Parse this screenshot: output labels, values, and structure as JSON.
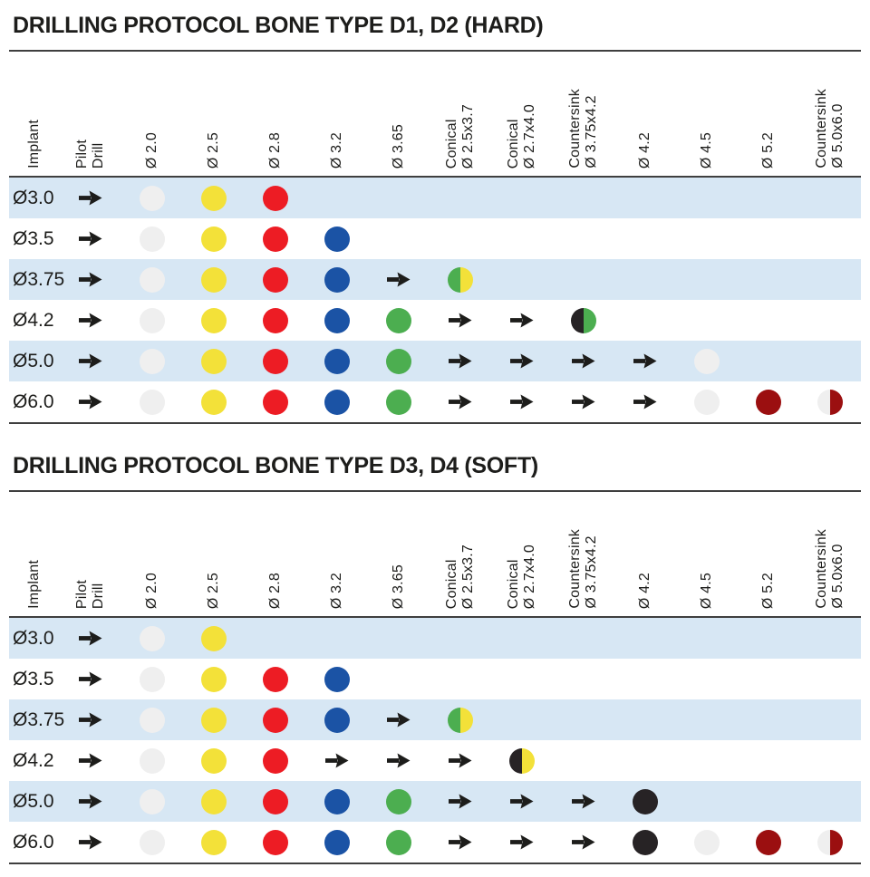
{
  "colors": {
    "white": "#efefef",
    "yellow": "#f3e139",
    "red": "#ed1c24",
    "blue": "#1b53a5",
    "green": "#4cae50",
    "black": "#272325",
    "darkred": "#9b0f10",
    "stripe": "#d7e7f4",
    "rule": "#3f3f3f",
    "arrow": "#1d1d1b",
    "text": "#1d1d1b"
  },
  "legend_note": "cells: arrow = proceed/skip indicator, dot:<color> = drill step, half:<a>/<b> = split-color drill step",
  "tables": [
    {
      "title": "DRILLING PROTOCOL BONE TYPE D1, D2 (HARD)",
      "columns": [
        "Implant",
        "Pilot\nDrill",
        "Ø 2.0",
        "Ø 2.5",
        "Ø 2.8",
        "Ø 3.2",
        "Ø 3.65",
        "Conical\nØ 2.5x3.7",
        "Conical\nØ 2.7x4.0",
        "Countersink\nØ 3.75x4.2",
        "Ø 4.2",
        "Ø 4.5",
        "Ø 5.2",
        "Countersink\nØ 5.0x6.0"
      ],
      "rows": [
        {
          "implant": "Ø3.0",
          "cells": [
            "arrow",
            "dot:white",
            "dot:yellow",
            "dot:red",
            "",
            "",
            "",
            "",
            "",
            "",
            "",
            "",
            ""
          ]
        },
        {
          "implant": "Ø3.5",
          "cells": [
            "arrow",
            "dot:white",
            "dot:yellow",
            "dot:red",
            "dot:blue",
            "",
            "",
            "",
            "",
            "",
            "",
            "",
            ""
          ]
        },
        {
          "implant": "Ø3.75",
          "cells": [
            "arrow",
            "dot:white",
            "dot:yellow",
            "dot:red",
            "dot:blue",
            "arrow",
            "half:green/yellow",
            "",
            "",
            "",
            "",
            "",
            ""
          ]
        },
        {
          "implant": "Ø4.2",
          "cells": [
            "arrow",
            "dot:white",
            "dot:yellow",
            "dot:red",
            "dot:blue",
            "dot:green",
            "arrow",
            "arrow",
            "half:black/green",
            "",
            "",
            "",
            ""
          ]
        },
        {
          "implant": "Ø5.0",
          "cells": [
            "arrow",
            "dot:white",
            "dot:yellow",
            "dot:red",
            "dot:blue",
            "dot:green",
            "arrow",
            "arrow",
            "arrow",
            "arrow",
            "dot:white",
            "",
            ""
          ]
        },
        {
          "implant": "Ø6.0",
          "cells": [
            "arrow",
            "dot:white",
            "dot:yellow",
            "dot:red",
            "dot:blue",
            "dot:green",
            "arrow",
            "arrow",
            "arrow",
            "arrow",
            "dot:white",
            "dot:darkred",
            "half:white/darkred"
          ]
        }
      ]
    },
    {
      "title": "DRILLING PROTOCOL BONE TYPE D3, D4 (SOFT)",
      "columns": [
        "Implant",
        "Pilot\nDrill",
        "Ø 2.0",
        "Ø 2.5",
        "Ø 2.8",
        "Ø 3.2",
        "Ø 3.65",
        "Conical\nØ 2.5x3.7",
        "Conical\nØ 2.7x4.0",
        "Countersink\nØ 3.75x4.2",
        "Ø 4.2",
        "Ø 4.5",
        "Ø 5.2",
        "Countersink\nØ 5.0x6.0"
      ],
      "rows": [
        {
          "implant": "Ø3.0",
          "cells": [
            "arrow",
            "dot:white",
            "dot:yellow",
            "",
            "",
            "",
            "",
            "",
            "",
            "",
            "",
            "",
            ""
          ]
        },
        {
          "implant": "Ø3.5",
          "cells": [
            "arrow",
            "dot:white",
            "dot:yellow",
            "dot:red",
            "dot:blue",
            "",
            "",
            "",
            "",
            "",
            "",
            "",
            ""
          ]
        },
        {
          "implant": "Ø3.75",
          "cells": [
            "arrow",
            "dot:white",
            "dot:yellow",
            "dot:red",
            "dot:blue",
            "arrow",
            "half:green/yellow",
            "",
            "",
            "",
            "",
            "",
            ""
          ]
        },
        {
          "implant": "Ø4.2",
          "cells": [
            "arrow",
            "dot:white",
            "dot:yellow",
            "dot:red",
            "arrow",
            "arrow",
            "arrow",
            "half:black/yellow",
            "",
            "",
            "",
            "",
            ""
          ]
        },
        {
          "implant": "Ø5.0",
          "cells": [
            "arrow",
            "dot:white",
            "dot:yellow",
            "dot:red",
            "dot:blue",
            "dot:green",
            "arrow",
            "arrow",
            "arrow",
            "dot:black",
            "",
            "",
            ""
          ]
        },
        {
          "implant": "Ø6.0",
          "cells": [
            "arrow",
            "dot:white",
            "dot:yellow",
            "dot:red",
            "dot:blue",
            "dot:green",
            "arrow",
            "arrow",
            "arrow",
            "dot:black",
            "dot:white",
            "dot:darkred",
            "half:white/darkred"
          ]
        }
      ]
    }
  ]
}
